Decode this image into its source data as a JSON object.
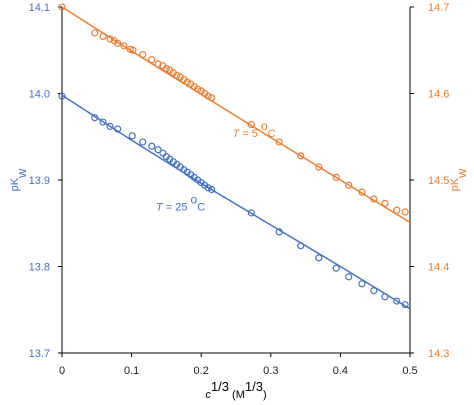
{
  "chart_data": {
    "type": "scatter",
    "x_label": [
      "c",
      "1/3",
      " (M",
      "1/3",
      ")"
    ],
    "y_label": [
      "pK",
      "w"
    ],
    "y2_label": [
      "pK",
      "w"
    ],
    "xlim": [
      0,
      0.5
    ],
    "xticks": [
      0,
      0.1,
      0.2,
      0.3,
      0.4,
      0.5
    ],
    "ylim": [
      13.7,
      14.1
    ],
    "yticks": [
      13.7,
      13.8,
      13.9,
      {
        "value": 14.0,
        "label": "14.0"
      },
      14.1
    ],
    "y2lim": [
      14.3,
      14.7
    ],
    "y2ticks": [
      14.3,
      14.4,
      14.5,
      14.6,
      14.7
    ],
    "grid": false,
    "annotations": [
      {
        "parts": [
          "T",
          " = 25 ",
          "o",
          "C"
        ],
        "color": "#4472c4",
        "x": 0.135,
        "y": 13.865
      },
      {
        "parts": [
          "T",
          " = 5 ",
          "o",
          "C"
        ],
        "color": "#ed7d31",
        "x": 0.245,
        "y": 13.95
      }
    ],
    "series": [
      {
        "color": "#4472c4",
        "x": [
          0,
          0.047,
          0.059,
          0.069,
          0.08,
          0.101,
          0.116,
          0.129,
          0.138,
          0.145,
          0.15,
          0.155,
          0.16,
          0.165,
          0.17,
          0.175,
          0.18,
          0.185,
          0.19,
          0.195,
          0.2,
          0.205,
          0.21,
          0.215,
          0.272,
          0.312,
          0.343,
          0.369,
          0.394,
          0.412,
          0.431,
          0.448,
          0.464,
          0.481,
          0.493
        ],
        "values": [
          13.997,
          13.972,
          13.967,
          13.962,
          13.959,
          13.951,
          13.944,
          13.939,
          13.935,
          13.931,
          13.927,
          13.924,
          13.921,
          13.918,
          13.915,
          13.912,
          13.909,
          13.906,
          13.903,
          13.9,
          13.897,
          13.894,
          13.891,
          13.889,
          13.862,
          13.84,
          13.824,
          13.81,
          13.798,
          13.788,
          13.78,
          13.772,
          13.765,
          13.76,
          13.756
        ]
      },
      {
        "color": "#ed7d31",
        "axis": "y2",
        "x": [
          0,
          0.047,
          0.059,
          0.069,
          0.075,
          0.08,
          0.089,
          0.098,
          0.102,
          0.116,
          0.129,
          0.138,
          0.145,
          0.15,
          0.155,
          0.16,
          0.165,
          0.17,
          0.175,
          0.18,
          0.185,
          0.19,
          0.195,
          0.2,
          0.205,
          0.21,
          0.215,
          0.272,
          0.312,
          0.343,
          0.369,
          0.394,
          0.412,
          0.431,
          0.448,
          0.464,
          0.481,
          0.493
        ],
        "values": [
          14.7,
          14.67,
          14.666,
          14.663,
          14.661,
          14.658,
          14.655,
          14.651,
          14.65,
          14.645,
          14.639,
          14.634,
          14.632,
          14.629,
          14.627,
          14.624,
          14.621,
          14.619,
          14.616,
          14.613,
          14.611,
          14.608,
          14.605,
          14.603,
          14.6,
          14.597,
          14.595,
          14.564,
          14.544,
          14.528,
          14.515,
          14.503,
          14.494,
          14.486,
          14.478,
          14.473,
          14.465,
          14.463
        ]
      }
    ],
    "fit_lines": [
      {
        "color": "#4472c4",
        "x": [
          0,
          0.1,
          0.2,
          0.3,
          0.4,
          0.5
        ],
        "values": [
          13.998,
          13.946,
          13.896,
          13.848,
          13.8,
          13.751
        ]
      },
      {
        "color": "#ed7d31",
        "axis": "y2",
        "x": [
          0,
          0.1,
          0.2,
          0.3,
          0.4,
          0.5
        ],
        "values": [
          14.7,
          14.649,
          14.599,
          14.549,
          14.5,
          14.451
        ]
      }
    ]
  }
}
